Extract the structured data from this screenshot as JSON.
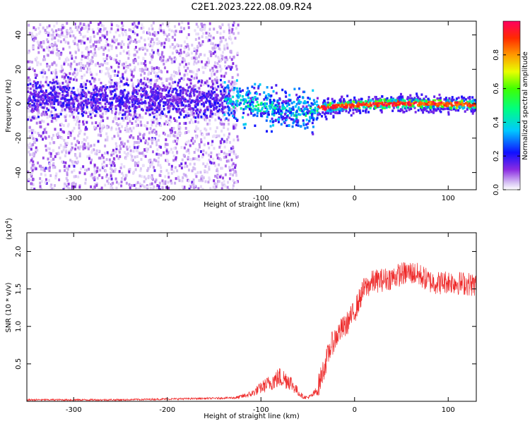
{
  "title": "C2E1.2023.222.08.09.R24",
  "colorbar": {
    "label": "Normalized spectral amplitude",
    "ticks": [
      "0.0",
      "0.2",
      "0.4",
      "0.6",
      "0.8"
    ],
    "tick_values": [
      0.0,
      0.2,
      0.4,
      0.6,
      0.8
    ],
    "range": [
      0,
      1
    ]
  },
  "chart_data": [
    {
      "type": "heatmap",
      "xlabel": "Height of straight line (km)",
      "ylabel": "Frequency (Hz)",
      "xlim": [
        -350,
        130
      ],
      "ylim": [
        -50,
        48
      ],
      "xticks": [
        -300,
        -200,
        -100,
        0,
        100
      ],
      "xtick_labels": [
        "-300",
        "-200",
        "-100",
        "0",
        "100"
      ],
      "yticks": [
        -40,
        -20,
        0,
        20,
        40
      ],
      "ytick_labels": [
        "-40",
        "-20",
        "0",
        "20",
        "40"
      ],
      "band_center_hz": [
        {
          "x": -350,
          "y": 4
        },
        {
          "x": -200,
          "y": 3
        },
        {
          "x": -140,
          "y": 2
        },
        {
          "x": -110,
          "y": 0
        },
        {
          "x": -80,
          "y": -3
        },
        {
          "x": -55,
          "y": -5
        },
        {
          "x": -40,
          "y": -2
        },
        {
          "x": 0,
          "y": 0
        },
        {
          "x": 50,
          "y": 1
        },
        {
          "x": 130,
          "y": 0
        }
      ],
      "peak_amplitude_region_km": [
        -30,
        130
      ]
    },
    {
      "type": "line",
      "xlabel": "Height of straight line (km)",
      "ylabel": "SNR (10 * v/v)",
      "scale_label": "(x10",
      "scale_exponent": "4",
      "scale_suffix": ")",
      "xlim": [
        -350,
        130
      ],
      "ylim": [
        0,
        2.25
      ],
      "xticks": [
        -300,
        -200,
        -100,
        0,
        100
      ],
      "xtick_labels": [
        "-300",
        "-200",
        "-100",
        "0",
        "100"
      ],
      "yticks": [
        0.5,
        1.0,
        1.5,
        2.0
      ],
      "ytick_labels": [
        "0.5",
        "1.0",
        "1.5",
        "2.0"
      ],
      "series": [
        {
          "color": "#ee2b2b",
          "x": [
            -350,
            -300,
            -250,
            -200,
            -150,
            -125,
            -110,
            -100,
            -90,
            -80,
            -70,
            -60,
            -55,
            -50,
            -45,
            -40,
            -35,
            -30,
            -25,
            -20,
            -15,
            -10,
            -5,
            0,
            5,
            10,
            20,
            30,
            40,
            50,
            60,
            70,
            80,
            90,
            100,
            110,
            120,
            130
          ],
          "y": [
            0.02,
            0.02,
            0.02,
            0.03,
            0.04,
            0.05,
            0.1,
            0.18,
            0.25,
            0.32,
            0.28,
            0.12,
            0.06,
            0.05,
            0.08,
            0.15,
            0.35,
            0.55,
            0.75,
            0.85,
            0.95,
            1.0,
            1.1,
            1.2,
            1.35,
            1.5,
            1.6,
            1.62,
            1.65,
            1.7,
            1.72,
            1.68,
            1.6,
            1.58,
            1.6,
            1.58,
            1.57,
            1.55
          ]
        }
      ]
    }
  ]
}
